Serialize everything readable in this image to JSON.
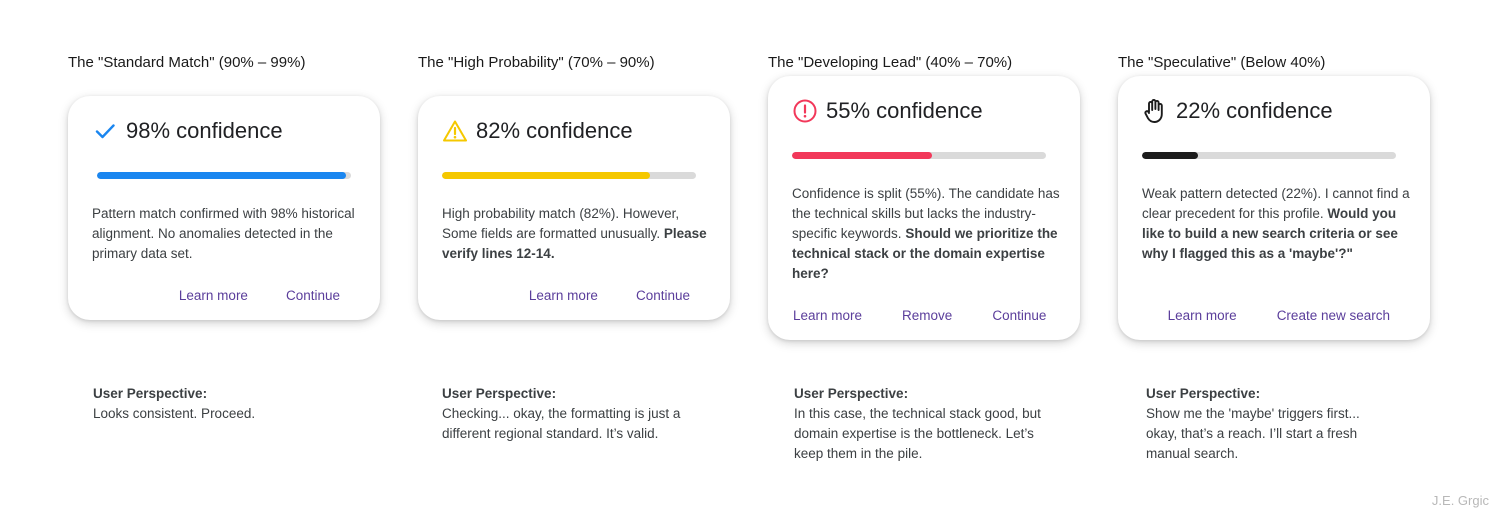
{
  "columns": [
    {
      "heading": "The \"Standard Match\" (90% – 99%)",
      "confidence": "98% confidence",
      "percent": 98,
      "icon": "check-icon",
      "bar_color": "#1a86f0",
      "body": "Pattern match confirmed with 98% historical alignment. No anomalies detected in the primary data set.",
      "body_bold": "",
      "actions": [
        "Learn more",
        "Continue"
      ],
      "perspective_heading": "User Perspective:",
      "perspective_text": "Looks consistent. Proceed."
    },
    {
      "heading": "The \"High Probability\" (70% – 90%)",
      "confidence": "82% confidence",
      "percent": 82,
      "icon": "warning-icon",
      "bar_color": "#f5c800",
      "body": "High probability match (82%). However, Some fields are formatted unusually.",
      "body_bold": "Please verify lines 12-14.",
      "actions": [
        "Learn more",
        "Continue"
      ],
      "perspective_heading": "User Perspective:",
      "perspective_text": "Checking... okay, the formatting is just a different regional standard. It’s valid."
    },
    {
      "heading": "The \"Developing Lead\" (40% – 70%)",
      "confidence": "55% confidence",
      "percent": 55,
      "icon": "alert-circle-icon",
      "bar_color": "#f2385a",
      "body": "Confidence is split (55%). The candidate has the technical skills but lacks the industry-specific keywords.",
      "body_bold": "Should we prioritize the technical stack or the domain expertise here?",
      "actions": [
        "Learn more",
        "Remove",
        "Continue"
      ],
      "perspective_heading": "User Perspective:",
      "perspective_text": "In this case, the technical stack good, but domain expertise is the bottleneck. Let’s keep them in the pile."
    },
    {
      "heading": "The \"Speculative\" (Below 40%)",
      "confidence": "22% confidence",
      "percent": 22,
      "icon": "hand-stop-icon",
      "bar_color": "#1c1c1c",
      "body": "Weak pattern detected (22%). I cannot find a clear precedent for this profile.",
      "body_bold": "Would you like to build a new search criteria or see why I flagged this as a 'maybe'?\"",
      "actions": [
        "Learn more",
        "Create new search"
      ],
      "perspective_heading": "User Perspective:",
      "perspective_text": "Show me the 'maybe' triggers first... okay, that’s a reach. I’ll start a fresh manual search."
    }
  ],
  "signature": "J.E. Grgic"
}
